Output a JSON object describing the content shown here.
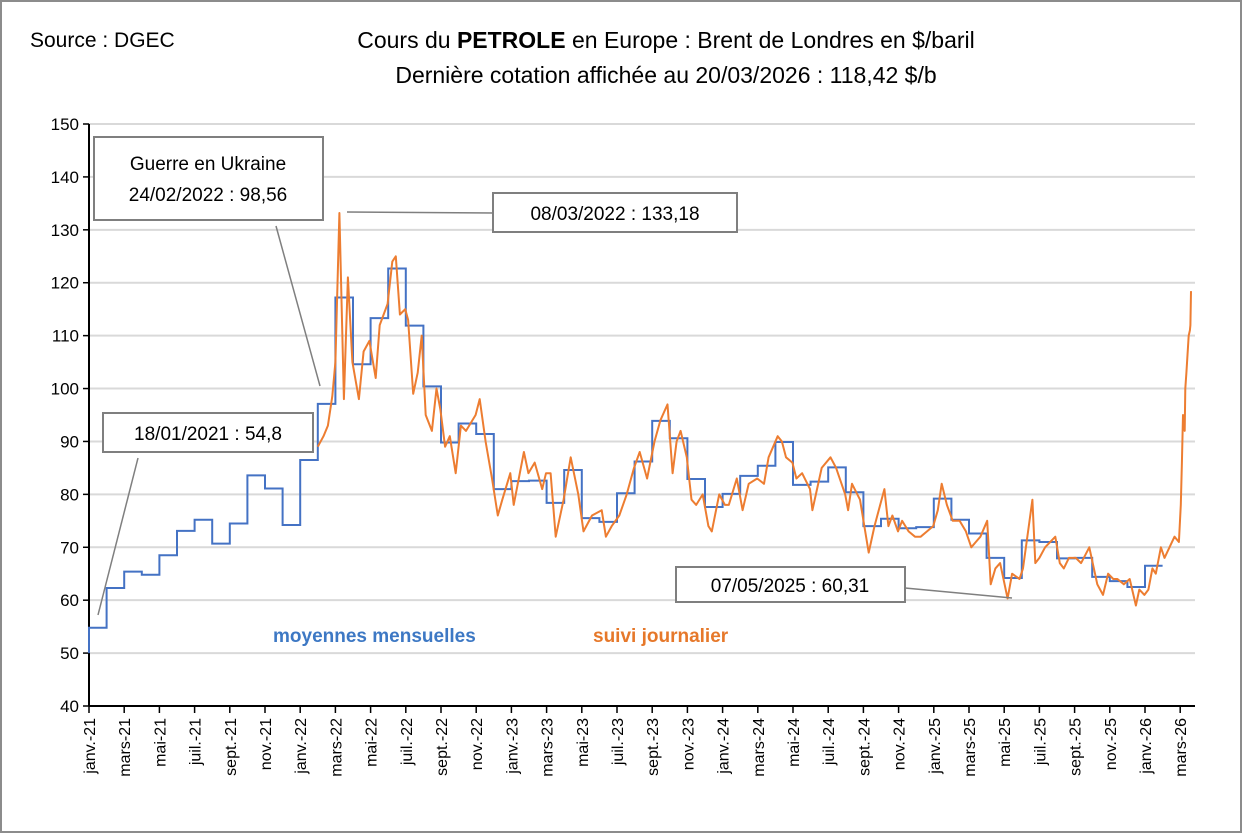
{
  "source": "Source : DGEC",
  "title_line1_pre": "Cours du ",
  "title_line1_bold": "PETROLE",
  "title_line1_post": " en Europe : Brent de Londres en $/baril",
  "title_line2": "Dernière cotation affichée au 20/03/2026 : 118,42 $/b",
  "colors": {
    "monthly": "#4472C4",
    "daily": "#ED7D31",
    "grid": "#D9D9D9",
    "callout_border": "#7F7F7F"
  },
  "chart_data": {
    "type": "line",
    "title": "Cours du PETROLE en Europe : Brent de Londres en $/baril",
    "ylim": [
      40,
      150
    ],
    "yticks": [
      40,
      50,
      60,
      70,
      80,
      90,
      100,
      110,
      120,
      130,
      140,
      150
    ],
    "grid": true,
    "xtick_labels": [
      "janv.-21",
      "mars-21",
      "mai-21",
      "juil.-21",
      "sept.-21",
      "nov.-21",
      "janv.-22",
      "mars-22",
      "mai-22",
      "juil.-22",
      "sept.-22",
      "nov.-22",
      "janv.-23",
      "mars-23",
      "mai-23",
      "juil.-23",
      "sept.-23",
      "nov.-23",
      "janv.-24",
      "mars-24",
      "mai-24",
      "juil.-24",
      "sept.-24",
      "nov.-24",
      "janv.-25",
      "mars-25",
      "mai-25",
      "juil.-25",
      "sept.-25",
      "nov.-25",
      "janv.-26",
      "mars-26"
    ],
    "series": [
      {
        "name": "moyennes mensuelles",
        "style": "step",
        "start_month": "2021-01",
        "values": [
          54.8,
          62.3,
          65.4,
          64.8,
          68.5,
          73.1,
          75.2,
          70.7,
          74.5,
          83.6,
          81.1,
          74.2,
          86.5,
          97.1,
          117.2,
          104.6,
          113.3,
          122.7,
          111.9,
          100.4,
          89.8,
          93.4,
          91.4,
          81.0,
          82.5,
          82.6,
          78.4,
          84.6,
          75.5,
          74.8,
          80.2,
          86.2,
          93.9,
          90.6,
          82.9,
          77.6,
          80.1,
          83.5,
          85.4,
          89.9,
          81.8,
          82.4,
          85.1,
          80.4,
          74.0,
          75.4,
          73.6,
          73.8,
          79.2,
          75.2,
          72.6,
          68.0,
          64.2,
          71.3,
          71.0,
          67.9,
          68.0,
          64.4,
          63.6,
          62.5,
          66.5
        ]
      },
      {
        "name": "suivi journalier",
        "style": "line",
        "points": [
          [
            "2022-02-01",
            89
          ],
          [
            "2022-02-10",
            91
          ],
          [
            "2022-02-17",
            93
          ],
          [
            "2022-02-24",
            98.56
          ],
          [
            "2022-03-01",
            105
          ],
          [
            "2022-03-08",
            133.18
          ],
          [
            "2022-03-16",
            98
          ],
          [
            "2022-03-23",
            121
          ],
          [
            "2022-03-31",
            105
          ],
          [
            "2022-04-11",
            98
          ],
          [
            "2022-04-19",
            107
          ],
          [
            "2022-04-29",
            109
          ],
          [
            "2022-05-10",
            102
          ],
          [
            "2022-05-17",
            112
          ],
          [
            "2022-05-31",
            116
          ],
          [
            "2022-06-08",
            124
          ],
          [
            "2022-06-14",
            125
          ],
          [
            "2022-06-21",
            114
          ],
          [
            "2022-06-30",
            115
          ],
          [
            "2022-07-05",
            113
          ],
          [
            "2022-07-14",
            99
          ],
          [
            "2022-07-22",
            103
          ],
          [
            "2022-07-29",
            110
          ],
          [
            "2022-08-05",
            95
          ],
          [
            "2022-08-16",
            92
          ],
          [
            "2022-08-24",
            100
          ],
          [
            "2022-08-31",
            96
          ],
          [
            "2022-09-08",
            89
          ],
          [
            "2022-09-16",
            91
          ],
          [
            "2022-09-26",
            84
          ],
          [
            "2022-10-05",
            93
          ],
          [
            "2022-10-14",
            92
          ],
          [
            "2022-10-31",
            95
          ],
          [
            "2022-11-07",
            98
          ],
          [
            "2022-11-17",
            90
          ],
          [
            "2022-11-28",
            83
          ],
          [
            "2022-12-08",
            76
          ],
          [
            "2022-12-16",
            79
          ],
          [
            "2022-12-30",
            84
          ],
          [
            "2023-01-05",
            78
          ],
          [
            "2023-01-23",
            88
          ],
          [
            "2023-01-31",
            84
          ],
          [
            "2023-02-10",
            86
          ],
          [
            "2023-02-22",
            81
          ],
          [
            "2023-02-28",
            84
          ],
          [
            "2023-03-08",
            84
          ],
          [
            "2023-03-17",
            72
          ],
          [
            "2023-03-31",
            79
          ],
          [
            "2023-04-12",
            87
          ],
          [
            "2023-04-25",
            80
          ],
          [
            "2023-05-04",
            73
          ],
          [
            "2023-05-19",
            76
          ],
          [
            "2023-06-05",
            77
          ],
          [
            "2023-06-12",
            72
          ],
          [
            "2023-06-22",
            74
          ],
          [
            "2023-07-05",
            76
          ],
          [
            "2023-07-18",
            80
          ],
          [
            "2023-07-31",
            85
          ],
          [
            "2023-08-10",
            88
          ],
          [
            "2023-08-23",
            83
          ],
          [
            "2023-09-05",
            90
          ],
          [
            "2023-09-15",
            94
          ],
          [
            "2023-09-27",
            97
          ],
          [
            "2023-10-06",
            84
          ],
          [
            "2023-10-13",
            90
          ],
          [
            "2023-10-20",
            92
          ],
          [
            "2023-10-31",
            87
          ],
          [
            "2023-11-08",
            79
          ],
          [
            "2023-11-16",
            78
          ],
          [
            "2023-11-27",
            80
          ],
          [
            "2023-12-07",
            74
          ],
          [
            "2023-12-13",
            73
          ],
          [
            "2023-12-26",
            80
          ],
          [
            "2024-01-05",
            78
          ],
          [
            "2024-01-12",
            78
          ],
          [
            "2024-01-26",
            83
          ],
          [
            "2024-02-05",
            77
          ],
          [
            "2024-02-15",
            82
          ],
          [
            "2024-02-29",
            83
          ],
          [
            "2024-03-12",
            82
          ],
          [
            "2024-03-20",
            87
          ],
          [
            "2024-04-05",
            91
          ],
          [
            "2024-04-12",
            90
          ],
          [
            "2024-04-19",
            87
          ],
          [
            "2024-04-30",
            86
          ],
          [
            "2024-05-07",
            83
          ],
          [
            "2024-05-17",
            84
          ],
          [
            "2024-05-31",
            81
          ],
          [
            "2024-06-04",
            77
          ],
          [
            "2024-06-20",
            85
          ],
          [
            "2024-07-05",
            87
          ],
          [
            "2024-07-15",
            85
          ],
          [
            "2024-07-31",
            80
          ],
          [
            "2024-08-05",
            77
          ],
          [
            "2024-08-12",
            82
          ],
          [
            "2024-08-26",
            79
          ],
          [
            "2024-09-10",
            69
          ],
          [
            "2024-09-20",
            74
          ],
          [
            "2024-10-07",
            81
          ],
          [
            "2024-10-14",
            74
          ],
          [
            "2024-10-21",
            76
          ],
          [
            "2024-10-31",
            73
          ],
          [
            "2024-11-07",
            75
          ],
          [
            "2024-11-18",
            73
          ],
          [
            "2024-11-29",
            72
          ],
          [
            "2024-12-09",
            72
          ],
          [
            "2024-12-20",
            73
          ],
          [
            "2024-12-31",
            74
          ],
          [
            "2025-01-08",
            77
          ],
          [
            "2025-01-15",
            82
          ],
          [
            "2025-01-24",
            78
          ],
          [
            "2025-02-03",
            75
          ],
          [
            "2025-02-14",
            75
          ],
          [
            "2025-02-24",
            73
          ],
          [
            "2025-03-05",
            70
          ],
          [
            "2025-03-13",
            71
          ],
          [
            "2025-03-21",
            72
          ],
          [
            "2025-04-02",
            75
          ],
          [
            "2025-04-08",
            63
          ],
          [
            "2025-04-16",
            66
          ],
          [
            "2025-04-24",
            67
          ],
          [
            "2025-05-07",
            60.31
          ],
          [
            "2025-05-15",
            65
          ],
          [
            "2025-05-28",
            64
          ],
          [
            "2025-06-03",
            66
          ],
          [
            "2025-06-13",
            74
          ],
          [
            "2025-06-19",
            79
          ],
          [
            "2025-06-24",
            67
          ],
          [
            "2025-07-01",
            68
          ],
          [
            "2025-07-11",
            70
          ],
          [
            "2025-07-29",
            72
          ],
          [
            "2025-08-06",
            67
          ],
          [
            "2025-08-13",
            66
          ],
          [
            "2025-08-22",
            68
          ],
          [
            "2025-09-03",
            68
          ],
          [
            "2025-09-12",
            67
          ],
          [
            "2025-09-26",
            70
          ],
          [
            "2025-10-10",
            63
          ],
          [
            "2025-10-20",
            61
          ],
          [
            "2025-10-29",
            65
          ],
          [
            "2025-11-07",
            64
          ],
          [
            "2025-11-14",
            64
          ],
          [
            "2025-11-25",
            63
          ],
          [
            "2025-12-05",
            64
          ],
          [
            "2025-12-16",
            59
          ],
          [
            "2025-12-22",
            62
          ],
          [
            "2025-12-31",
            61
          ],
          [
            "2026-01-07",
            62
          ],
          [
            "2026-01-14",
            66
          ],
          [
            "2026-01-20",
            65
          ],
          [
            "2026-01-29",
            70
          ],
          [
            "2026-02-04",
            68
          ],
          [
            "2026-02-12",
            70
          ],
          [
            "2026-02-20",
            72
          ],
          [
            "2026-02-27",
            71
          ],
          [
            "2026-03-02",
            78
          ],
          [
            "2026-03-04",
            86
          ],
          [
            "2026-03-06",
            95
          ],
          [
            "2026-03-09",
            92
          ],
          [
            "2026-03-10",
            100
          ],
          [
            "2026-03-12",
            103
          ],
          [
            "2026-03-16",
            110
          ],
          [
            "2026-03-18",
            111
          ],
          [
            "2026-03-19",
            112
          ],
          [
            "2026-03-20",
            118.42
          ]
        ]
      }
    ],
    "legend": [
      "moyennes mensuelles",
      "suivi journalier"
    ],
    "annotations": [
      {
        "line1": "Guerre en Ukraine",
        "line2": "24/02/2022 : 98,56"
      },
      {
        "line1": "08/03/2022 : 133,18"
      },
      {
        "line1": "18/01/2021 : 54,8"
      },
      {
        "line1": "07/05/2025 : 60,31"
      }
    ]
  }
}
